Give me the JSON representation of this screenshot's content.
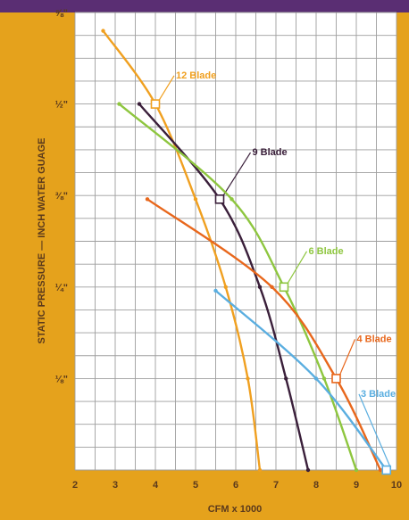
{
  "chart_data": {
    "type": "line",
    "xlabel": "CFM x 1000",
    "ylabel": "STATIC PRESSURE — INCH WATER GUAGE",
    "xlim": [
      2,
      10
    ],
    "ylim": [
      0,
      0.625
    ],
    "x_ticks": [
      {
        "v": 2,
        "label": "2"
      },
      {
        "v": 3,
        "label": "3"
      },
      {
        "v": 4,
        "label": "4"
      },
      {
        "v": 5,
        "label": "5"
      },
      {
        "v": 6,
        "label": "6"
      },
      {
        "v": 7,
        "label": "7"
      },
      {
        "v": 8,
        "label": "8"
      },
      {
        "v": 9,
        "label": "9"
      },
      {
        "v": 10,
        "label": "10"
      }
    ],
    "y_ticks": [
      {
        "v": 0.125,
        "label": "⅛\""
      },
      {
        "v": 0.25,
        "label": "¼\""
      },
      {
        "v": 0.375,
        "label": "⅜\""
      },
      {
        "v": 0.5,
        "label": "½\""
      },
      {
        "v": 0.625,
        "label": "⅝\""
      }
    ],
    "grid": true,
    "colors": {
      "background": "#e5a21c",
      "plot_area": "#ffffff",
      "grid": "#9e9e9e",
      "header_bar": "#5a2e73"
    },
    "series": [
      {
        "name": "12 Blade",
        "color": "#f0a020",
        "points": [
          [
            2.7,
            0.6
          ],
          [
            4.0,
            0.5
          ],
          [
            5.0,
            0.37
          ],
          [
            5.75,
            0.25
          ],
          [
            6.3,
            0.125
          ],
          [
            6.6,
            0.0
          ]
        ],
        "marker": [
          4.0,
          0.5
        ],
        "label": {
          "x": 4.6,
          "y": 0.535
        }
      },
      {
        "name": "9 Blade",
        "color": "#3a1f3a",
        "points": [
          [
            3.6,
            0.5
          ],
          [
            5.6,
            0.37
          ],
          [
            6.6,
            0.25
          ],
          [
            7.25,
            0.125
          ],
          [
            7.8,
            0.0
          ]
        ],
        "marker": [
          5.6,
          0.37
        ],
        "label": {
          "x": 6.5,
          "y": 0.43
        }
      },
      {
        "name": "6 Blade",
        "color": "#8ec63f",
        "points": [
          [
            3.1,
            0.5
          ],
          [
            5.9,
            0.37
          ],
          [
            7.2,
            0.25
          ],
          [
            8.2,
            0.125
          ],
          [
            9.0,
            0.0
          ]
        ],
        "marker": [
          7.2,
          0.25
        ],
        "label": {
          "x": 7.9,
          "y": 0.295
        }
      },
      {
        "name": "4 Blade",
        "color": "#e8671c",
        "points": [
          [
            3.8,
            0.37
          ],
          [
            6.9,
            0.25
          ],
          [
            8.5,
            0.125
          ],
          [
            9.6,
            0.0
          ]
        ],
        "marker": [
          8.5,
          0.125
        ],
        "label": {
          "x": 9.1,
          "y": 0.175
        }
      },
      {
        "name": "3 Blade",
        "color": "#5aaee0",
        "points": [
          [
            5.5,
            0.245
          ],
          [
            8.0,
            0.125
          ],
          [
            9.75,
            0.0
          ]
        ],
        "marker": [
          9.75,
          0.0
        ],
        "label": {
          "x": 9.2,
          "y": 0.1
        }
      }
    ]
  }
}
